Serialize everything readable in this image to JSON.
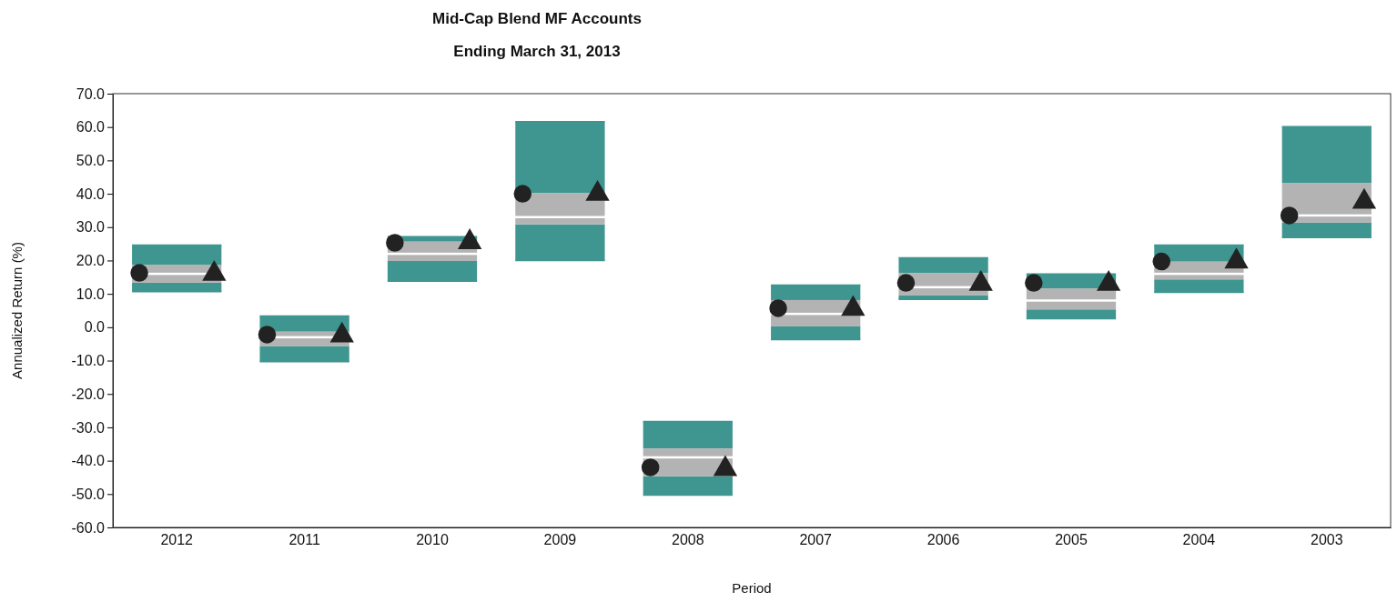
{
  "chart_data": {
    "type": "box",
    "title": "Mid-Cap Blend MF Accounts",
    "subtitle": "Ending March 31, 2013",
    "xlabel": "Period",
    "ylabel": "Annualized Return (%)",
    "categories": [
      "2012",
      "2011",
      "2010",
      "2009",
      "2008",
      "2007",
      "2006",
      "2005",
      "2004",
      "2003"
    ],
    "series": [
      {
        "color": "#b3b3b3",
        "boxes": [
          {
            "low": 10.8,
            "q1": 13,
            "median": 16,
            "q3": 19,
            "high": 24.5
          },
          {
            "low": -10.2,
            "q1": -6,
            "median": -3,
            "q3": -1,
            "high": 3.2
          },
          {
            "low": 13.9,
            "q1": 19.5,
            "median": 22,
            "q3": 26,
            "high": 27
          },
          {
            "low": 20.1,
            "q1": 30.5,
            "median": 33,
            "q3": 40.5,
            "high": 61.5
          },
          {
            "low": -50.2,
            "q1": -45,
            "median": -39,
            "q3": -36,
            "high": -28.4
          },
          {
            "low": -3.6,
            "q1": 0,
            "median": 4,
            "q3": 8.5,
            "high": 12.5
          },
          {
            "low": 8.5,
            "q1": 9.3,
            "median": 12,
            "q3": 16.5,
            "high": 20.7
          },
          {
            "low": 2.7,
            "q1": 5,
            "median": 8,
            "q3": 12,
            "high": 15.8
          },
          {
            "low": 10.6,
            "q1": 14,
            "median": 16,
            "q3": 20,
            "high": 24.5
          },
          {
            "low": 27,
            "q1": 31,
            "median": 33.5,
            "q3": 43.5,
            "high": 60
          }
        ]
      },
      {
        "type": "scatter",
        "marker": "circle",
        "color": "#222222",
        "values": [
          16.3,
          -2.2,
          25.3,
          40,
          -42,
          5.7,
          13.3,
          13.3,
          19.7,
          33.5
        ]
      },
      {
        "type": "scatter",
        "marker": "triangle",
        "color": "#222222",
        "values": [
          16,
          -2.5,
          25.5,
          40,
          -42.5,
          5.5,
          13,
          13,
          19.7,
          37.6
        ]
      }
    ],
    "ylim": [
      -60,
      70
    ],
    "yticks": [
      {
        "value": -60,
        "label": "-60.0"
      },
      {
        "value": -50,
        "label": "-50.0"
      },
      {
        "value": -40,
        "label": "-40.0"
      },
      {
        "value": -30,
        "label": "-30.0"
      },
      {
        "value": -20,
        "label": "-20.0"
      },
      {
        "value": -10,
        "label": "-10.0"
      },
      {
        "value": 0,
        "label": "0.0"
      },
      {
        "value": 10,
        "label": "10.0"
      },
      {
        "value": 20,
        "label": "20.0"
      },
      {
        "value": 30,
        "label": "30.0"
      },
      {
        "value": 40,
        "label": "40.0"
      },
      {
        "value": 50,
        "label": "50.0"
      },
      {
        "value": 60,
        "label": "60.0"
      },
      {
        "value": 70,
        "label": "70.0"
      }
    ],
    "grid": false
  }
}
